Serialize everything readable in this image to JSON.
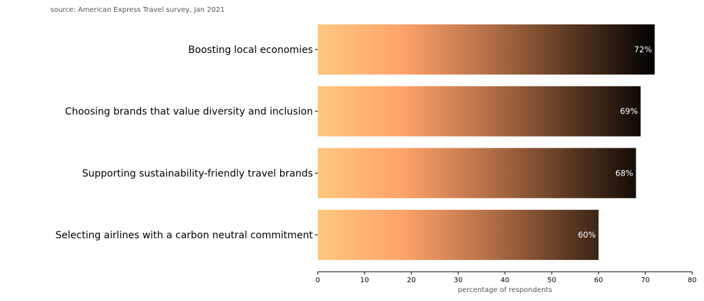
{
  "source_note": "source: American Express Travel survey, Jan 2021",
  "chart_data": {
    "type": "bar",
    "orientation": "horizontal",
    "categories": [
      "Boosting local economies",
      "Choosing brands that value diversity and inclusion",
      "Supporting sustainability-friendly travel brands",
      "Selecting airlines with a carbon neutral commitment"
    ],
    "values": [
      72,
      69,
      68,
      60
    ],
    "value_labels": [
      "72%",
      "69%",
      "68%",
      "60%"
    ],
    "title": "",
    "xlabel": "percentage of respondents",
    "ylabel": "",
    "xlim": [
      0,
      80
    ],
    "xticks": [
      0,
      10,
      20,
      30,
      40,
      50,
      60,
      70,
      80
    ],
    "xtick_labels": [
      "0",
      "10",
      "20",
      "30",
      "40",
      "50",
      "60",
      "70",
      "80"
    ],
    "grid": false,
    "bar_gradient": {
      "colormap": "copper_r",
      "stops": [
        "#ffc77f",
        "#ffa36a",
        "#b67148",
        "#5a3822",
        "#000000"
      ]
    }
  }
}
